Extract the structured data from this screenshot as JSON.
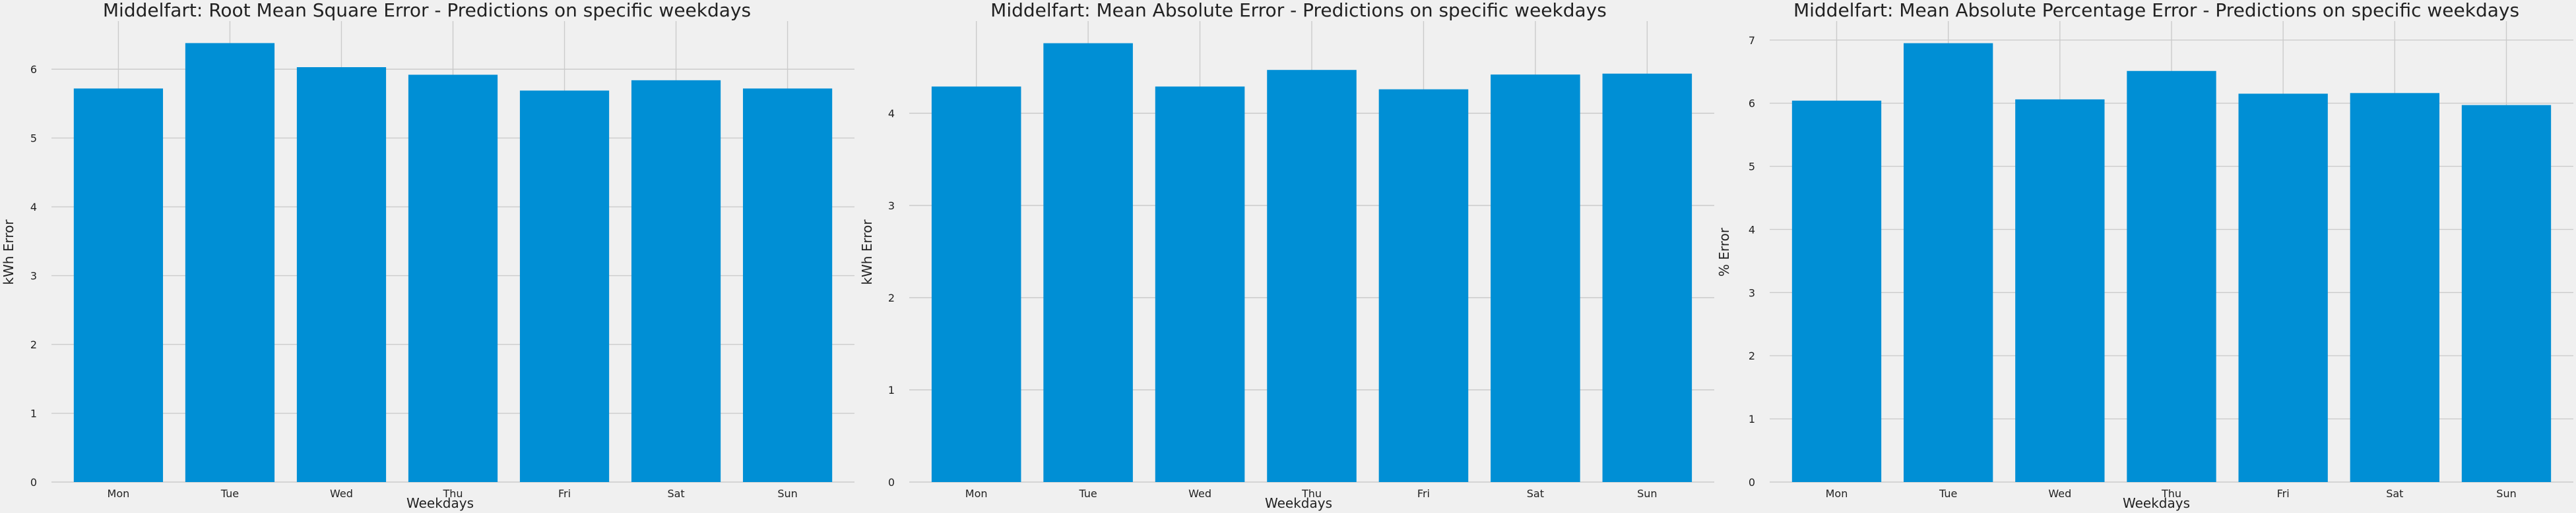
{
  "chart_data": [
    {
      "type": "bar",
      "title": "Middelfart: Root Mean Square Error - Predictions on specific weekdays",
      "xlabel": "Weekdays",
      "ylabel": "kWh Error",
      "categories": [
        "Mon",
        "Tue",
        "Wed",
        "Thu",
        "Fri",
        "Sat",
        "Sun"
      ],
      "values": [
        5.72,
        6.38,
        6.03,
        5.92,
        5.69,
        5.84,
        5.72
      ],
      "ylim": [
        0,
        6.7
      ],
      "yticks": [
        "0",
        "1",
        "2",
        "3",
        "4",
        "5",
        "6"
      ],
      "grid": true,
      "bar_color": "#008fd5"
    },
    {
      "type": "bar",
      "title": "Middelfart: Mean Absolute Error - Predictions on specific weekdays",
      "xlabel": "Weekdays",
      "ylabel": "kWh Error",
      "categories": [
        "Mon",
        "Tue",
        "Wed",
        "Thu",
        "Fri",
        "Sat",
        "Sun"
      ],
      "values": [
        4.29,
        4.76,
        4.29,
        4.47,
        4.26,
        4.42,
        4.43
      ],
      "ylim": [
        0,
        5.0
      ],
      "yticks": [
        "0",
        "1",
        "2",
        "3",
        "4"
      ],
      "grid": true,
      "bar_color": "#008fd5"
    },
    {
      "type": "bar",
      "title": "Middelfart: Mean Absolute Percentage Error - Predictions on specific weekdays",
      "xlabel": "Weekdays",
      "ylabel": "% Error",
      "categories": [
        "Mon",
        "Tue",
        "Wed",
        "Thu",
        "Fri",
        "Sat",
        "Sun"
      ],
      "values": [
        6.04,
        6.95,
        6.06,
        6.51,
        6.15,
        6.16,
        5.97
      ],
      "ylim": [
        0,
        7.3
      ],
      "yticks": [
        "0",
        "1",
        "2",
        "3",
        "4",
        "5",
        "6",
        "7"
      ],
      "grid": true,
      "bar_color": "#008fd5"
    }
  ]
}
